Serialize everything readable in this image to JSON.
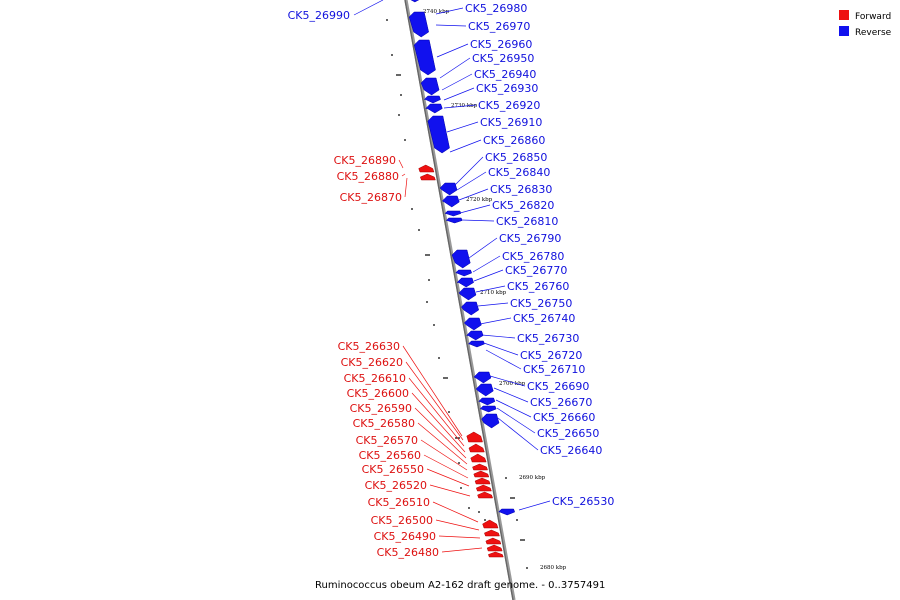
{
  "caption": "Ruminococcus obeum A2-162 draft genome. - 0..3757491",
  "legend": [
    {
      "label": "Forward",
      "color": "#ee1111"
    },
    {
      "label": "Reverse",
      "color": "#1111ee"
    }
  ],
  "ticks": [
    "2740 kbp",
    "2730 kbp",
    "2720 kbp",
    "2710 kbp",
    "2700 kbp",
    "2690 kbp",
    "2680 kbp"
  ],
  "reverse_genes": [
    "CK5_26990",
    "CK5_26980",
    "CK5_26970",
    "CK5_26960",
    "CK5_26950",
    "CK5_26940",
    "CK5_26930",
    "CK5_26920",
    "CK5_26910",
    "CK5_26860",
    "CK5_26850",
    "CK5_26840",
    "CK5_26830",
    "CK5_26820",
    "CK5_26810",
    "CK5_26790",
    "CK5_26780",
    "CK5_26770",
    "CK5_26760",
    "CK5_26750",
    "CK5_26740",
    "CK5_26730",
    "CK5_26720",
    "CK5_26710",
    "CK5_26690",
    "CK5_26670",
    "CK5_26660",
    "CK5_26650",
    "CK5_26640",
    "CK5_26530"
  ],
  "forward_genes": [
    "CK5_26890",
    "CK5_26880",
    "CK5_26870",
    "CK5_26630",
    "CK5_26620",
    "CK5_26610",
    "CK5_26600",
    "CK5_26590",
    "CK5_26580",
    "CK5_26570",
    "CK5_26560",
    "CK5_26550",
    "CK5_26520",
    "CK5_26510",
    "CK5_26500",
    "CK5_26490",
    "CK5_26480"
  ]
}
